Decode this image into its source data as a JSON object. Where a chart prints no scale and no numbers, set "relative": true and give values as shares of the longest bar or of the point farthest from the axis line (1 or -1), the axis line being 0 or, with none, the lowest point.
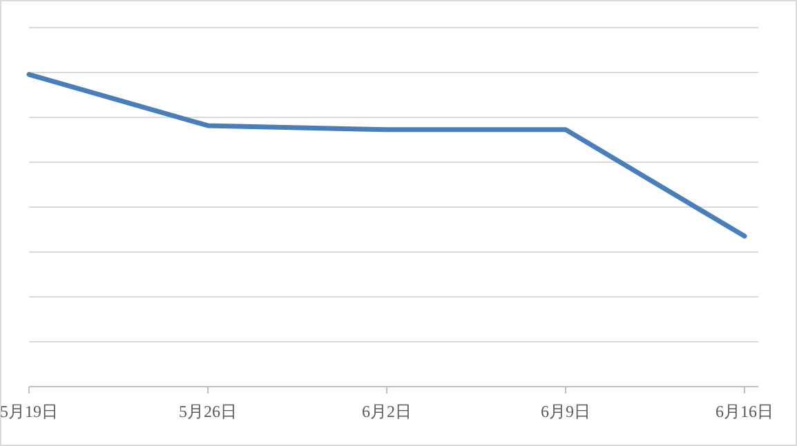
{
  "chart_data": {
    "type": "line",
    "relative": true,
    "categories": [
      "5月19日",
      "5月26日",
      "6月2日",
      "6月9日",
      "6月16日"
    ],
    "series": [
      {
        "color": "#4a7ebb",
        "values": [
          1,
          0.836,
          0.823,
          0.823,
          0.482
        ]
      }
    ],
    "grid": "y",
    "marker": "none",
    "line_style": "solid"
  }
}
